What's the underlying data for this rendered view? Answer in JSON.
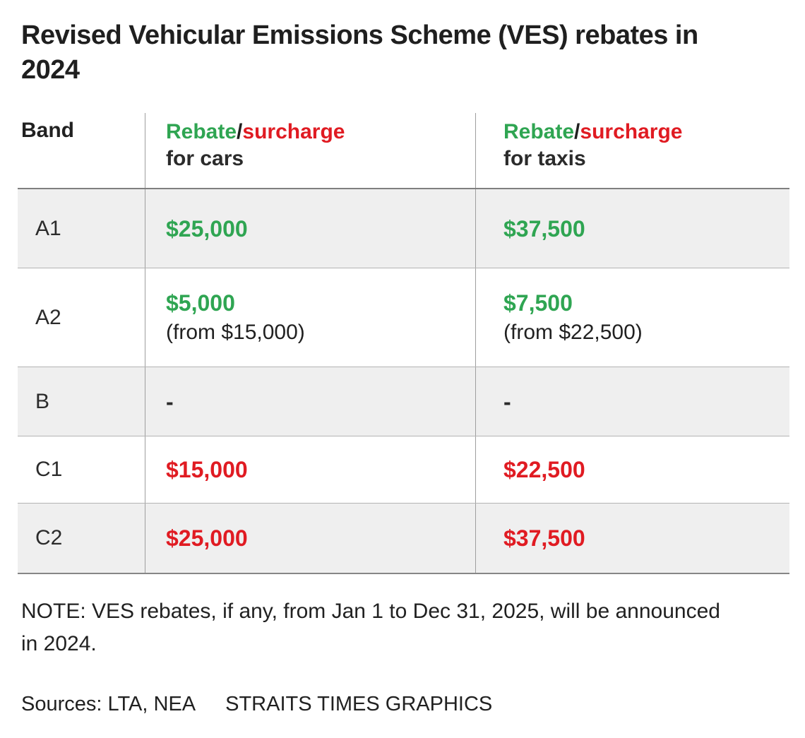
{
  "title": "Revised Vehicular Emissions Scheme (VES) rebates in 2024",
  "colors": {
    "green": "#2fa552",
    "red": "#e01b22",
    "black": "#2b2b2b"
  },
  "chart_data": {
    "type": "table",
    "title": "Revised Vehicular Emissions Scheme (VES) rebates in 2024",
    "columns": [
      "Band",
      "Rebate/surcharge for cars",
      "Rebate/surcharge for taxis"
    ],
    "rows": [
      {
        "band": "A1",
        "cars": "$25,000 rebate",
        "taxis": "$37,500 rebate"
      },
      {
        "band": "A2",
        "cars": "$5,000 rebate (from $15,000)",
        "taxis": "$7,500 rebate (from $22,500)"
      },
      {
        "band": "B",
        "cars": "-",
        "taxis": "-"
      },
      {
        "band": "C1",
        "cars": "$15,000 surcharge",
        "taxis": "$22,500 surcharge"
      },
      {
        "band": "C2",
        "cars": "$25,000 surcharge",
        "taxis": "$37,500 surcharge"
      }
    ]
  },
  "table": {
    "band_header": "Band",
    "columns": [
      {
        "rebate": "Rebate",
        "slash": "/",
        "surcharge": "surcharge",
        "for_label": "for cars"
      },
      {
        "rebate": "Rebate",
        "slash": "/",
        "surcharge": "surcharge",
        "for_label": "for taxis"
      }
    ],
    "rows": [
      {
        "band": "A1",
        "cars": {
          "value": "$25,000",
          "color": "green"
        },
        "taxis": {
          "value": "$37,500",
          "color": "green"
        }
      },
      {
        "band": "A2",
        "cars": {
          "value": "$5,000",
          "color": "green",
          "note": "(from $15,000)"
        },
        "taxis": {
          "value": "$7,500",
          "color": "green",
          "note": "(from $22,500)"
        }
      },
      {
        "band": "B",
        "cars": {
          "value": "-",
          "color": "black"
        },
        "taxis": {
          "value": "-",
          "color": "black"
        }
      },
      {
        "band": "C1",
        "cars": {
          "value": "$15,000",
          "color": "red"
        },
        "taxis": {
          "value": "$22,500",
          "color": "red"
        }
      },
      {
        "band": "C2",
        "cars": {
          "value": "$25,000",
          "color": "red"
        },
        "taxis": {
          "value": "$37,500",
          "color": "red"
        }
      }
    ]
  },
  "note": "NOTE: VES rebates, if any, from Jan 1 to Dec 31, 2025, will be announced in 2024.",
  "sources": "Sources: LTA, NEA",
  "credit": "STRAITS TIMES GRAPHICS"
}
